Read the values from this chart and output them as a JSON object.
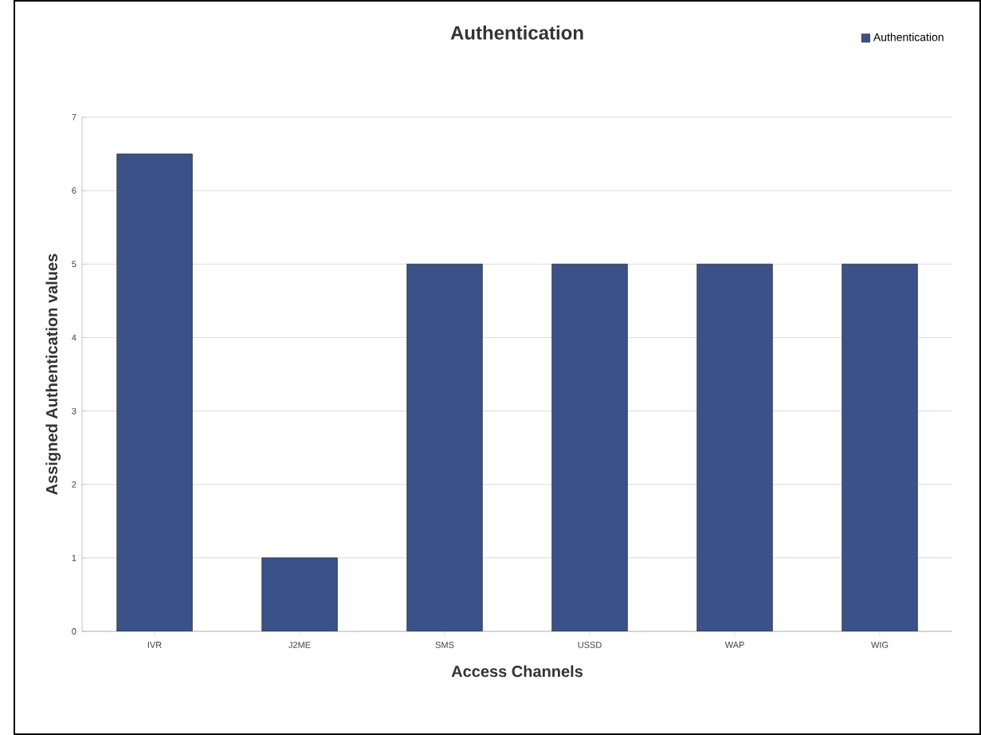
{
  "chart_data": {
    "type": "bar",
    "title": "Authentication",
    "xlabel": "Access Channels",
    "ylabel": "Assigned Authentication values",
    "categories": [
      "IVR",
      "J2ME",
      "SMS",
      "USSD",
      "WAP",
      "WIG"
    ],
    "series": [
      {
        "name": "Authentication",
        "color": "#3a5289",
        "values": [
          6.5,
          1,
          5,
          5,
          5,
          5
        ]
      }
    ],
    "ylim": [
      0,
      7
    ],
    "yticks": [
      0,
      1,
      2,
      3,
      4,
      5,
      6,
      7
    ],
    "grid": "y",
    "legend": "top right"
  }
}
